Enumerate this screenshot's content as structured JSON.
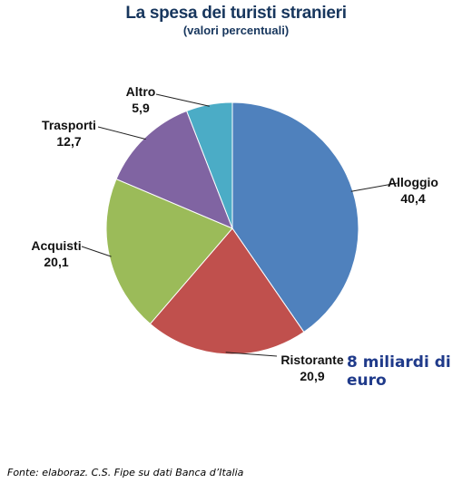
{
  "chart_data": {
    "type": "pie",
    "title": "La spesa dei turisti stranieri",
    "subtitle": "(valori percentuali)",
    "categories": [
      "Alloggio",
      "Ristorante",
      "Acquisti",
      "Trasporti",
      "Altro"
    ],
    "values": [
      40.4,
      20.9,
      20.1,
      12.7,
      5.9
    ],
    "value_labels": [
      "40,4",
      "20,9",
      "20,1",
      "12,7",
      "5,9"
    ],
    "colors": [
      "#4f81bd",
      "#c0504d",
      "#9bbb59",
      "#8064a2",
      "#4bacc6"
    ],
    "start": "12 o'clock",
    "direction": "clockwise"
  },
  "note": "8 miliardi di euro",
  "source": "Fonte:  elaboraz. C.S. Fipe su dati Banca d’Italia"
}
